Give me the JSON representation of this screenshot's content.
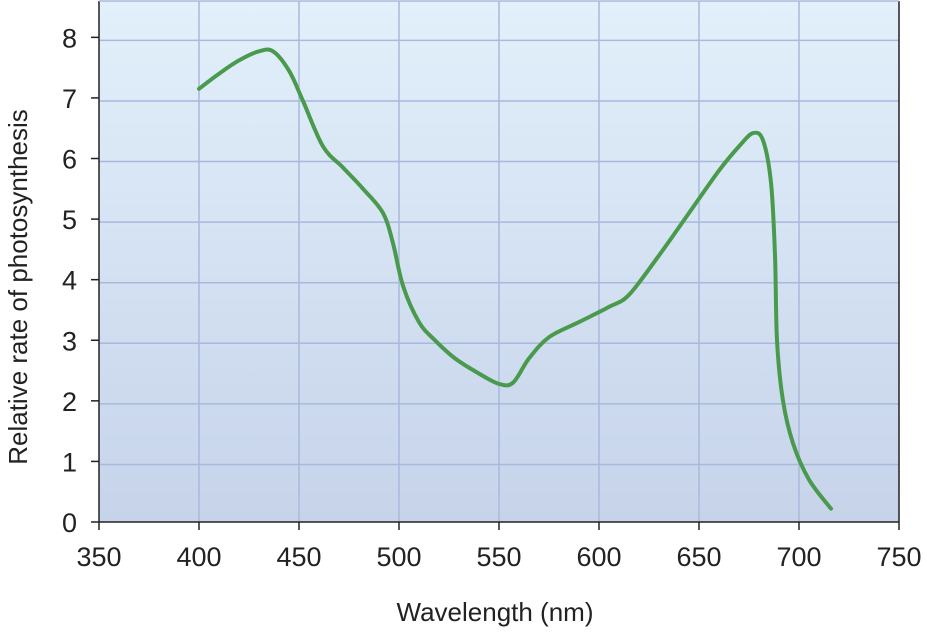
{
  "chart_data": {
    "type": "line",
    "xlabel": "Wavelength (nm)",
    "ylabel": "Relative rate of photosynthesis",
    "xlim": [
      350,
      750
    ],
    "ylim": [
      0,
      8.6
    ],
    "xticks": [
      "350",
      "400",
      "450",
      "500",
      "550",
      "600",
      "650",
      "700",
      "750"
    ],
    "yticks": [
      "0",
      "1",
      "2",
      "3",
      "4",
      "5",
      "6",
      "7",
      "8"
    ],
    "grid": true,
    "series": [
      {
        "line_color": "#4a9a4e",
        "x": [
          400,
          410,
          420,
          430,
          437,
          445,
          452,
          462,
          472,
          482,
          492,
          497,
          502,
          510,
          518,
          528,
          540,
          550,
          557,
          565,
          575,
          590,
          605,
          615,
          630,
          645,
          660,
          670,
          677,
          682,
          686,
          688,
          689,
          692,
          697,
          705,
          716
        ],
        "y": [
          7.15,
          7.4,
          7.62,
          7.77,
          7.77,
          7.45,
          6.95,
          6.2,
          5.85,
          5.5,
          5.1,
          4.6,
          3.9,
          3.3,
          3.0,
          2.7,
          2.45,
          2.28,
          2.3,
          2.7,
          3.05,
          3.3,
          3.55,
          3.75,
          4.4,
          5.1,
          5.8,
          6.2,
          6.42,
          6.3,
          5.6,
          4.4,
          3.0,
          2.0,
          1.3,
          0.7,
          0.22
        ]
      }
    ]
  }
}
